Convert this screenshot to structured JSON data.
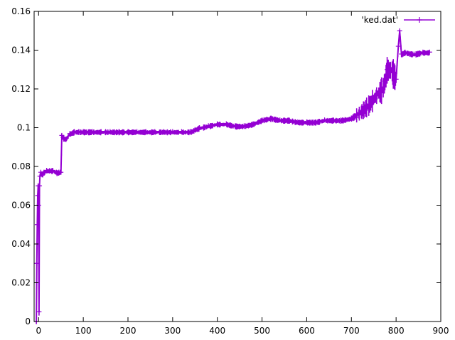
{
  "chart_data": {
    "type": "line",
    "title": "",
    "xlabel": "",
    "ylabel": "",
    "xlim": [
      -10,
      900
    ],
    "ylim": [
      0,
      0.16
    ],
    "grid": false,
    "legend_position": "top-right",
    "x_ticks": [
      {
        "value": 0,
        "label": "0"
      },
      {
        "value": 100,
        "label": "100"
      },
      {
        "value": 200,
        "label": "200"
      },
      {
        "value": 300,
        "label": "300"
      },
      {
        "value": 400,
        "label": "400"
      },
      {
        "value": 500,
        "label": "500"
      },
      {
        "value": 600,
        "label": "600"
      },
      {
        "value": 700,
        "label": "700"
      },
      {
        "value": 800,
        "label": "800"
      },
      {
        "value": 900,
        "label": "900"
      }
    ],
    "y_ticks": [
      {
        "value": 0,
        "label": "0"
      },
      {
        "value": 0.02,
        "label": "0.02"
      },
      {
        "value": 0.04,
        "label": "0.04"
      },
      {
        "value": 0.06,
        "label": "0.06"
      },
      {
        "value": 0.08,
        "label": "0.08"
      },
      {
        "value": 0.1,
        "label": "0.1"
      },
      {
        "value": 0.12,
        "label": "0.12"
      },
      {
        "value": 0.14,
        "label": "0.14"
      },
      {
        "value": 0.16,
        "label": "0.16"
      }
    ],
    "series": [
      {
        "name": "'ked.dat'",
        "color": "#9400d3",
        "marker": "plus",
        "x": [
          -5,
          -4,
          -3,
          -2,
          -1,
          0,
          1,
          2,
          3,
          5,
          8,
          12,
          18,
          25,
          32,
          40,
          45,
          48,
          50,
          52,
          55,
          60,
          70,
          80,
          90,
          100,
          120,
          140,
          150,
          160,
          180,
          200,
          220,
          240,
          260,
          280,
          300,
          320,
          340,
          350,
          360,
          380,
          400,
          420,
          440,
          460,
          480,
          500,
          520,
          540,
          560,
          580,
          600,
          620,
          640,
          660,
          680,
          700,
          720,
          740,
          760,
          770,
          775,
          780,
          790,
          800,
          805,
          808,
          812,
          820,
          840,
          860,
          875
        ],
        "y": [
          0.0,
          0.03,
          0.05,
          0.065,
          0.07,
          0.06,
          0.005,
          0.07,
          0.075,
          0.077,
          0.076,
          0.077,
          0.078,
          0.078,
          0.078,
          0.077,
          0.077,
          0.077,
          0.077,
          0.096,
          0.095,
          0.094,
          0.097,
          0.098,
          0.098,
          0.098,
          0.098,
          0.098,
          0.098,
          0.098,
          0.098,
          0.098,
          0.098,
          0.098,
          0.098,
          0.098,
          0.098,
          0.098,
          0.098,
          0.099,
          0.1,
          0.101,
          0.102,
          0.102,
          0.101,
          0.101,
          0.102,
          0.104,
          0.105,
          0.104,
          0.104,
          0.103,
          0.103,
          0.103,
          0.104,
          0.104,
          0.104,
          0.105,
          0.108,
          0.112,
          0.118,
          0.12,
          0.124,
          0.13,
          0.13,
          0.125,
          0.142,
          0.15,
          0.138,
          0.139,
          0.138,
          0.139,
          0.139
        ]
      }
    ]
  }
}
